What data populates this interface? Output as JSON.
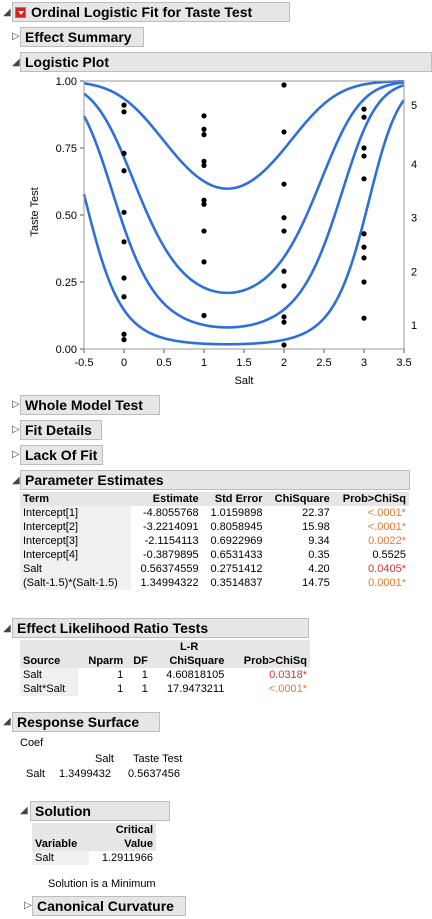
{
  "report": {
    "title": "Ordinal Logistic Fit for Taste Test",
    "effect_summary": "Effect Summary",
    "logistic_plot": "Logistic Plot",
    "whole_model_test": "Whole Model Test",
    "fit_details": "Fit Details",
    "lack_of_fit": "Lack Of Fit",
    "parameter_estimates": "Parameter Estimates",
    "effect_lr_tests": "Effect Likelihood Ratio Tests",
    "response_surface": "Response Surface",
    "solution": "Solution",
    "canonical_curvature": "Canonical Curvature"
  },
  "chart_data": {
    "type": "line",
    "xlabel": "Salt",
    "ylabel": "Taste Test",
    "xlim": [
      -0.5,
      3.5
    ],
    "ylim": [
      0,
      1
    ],
    "x_ticks": [
      "-0.5",
      "0",
      "0.5",
      "1",
      "1.5",
      "2",
      "2.5",
      "3",
      "3.5"
    ],
    "y_ticks": [
      "0.00",
      "0.25",
      "0.50",
      "0.75",
      "1.00"
    ],
    "right_labels": [
      "1",
      "2",
      "3",
      "4",
      "5"
    ],
    "grid": false,
    "line_color": "#2e6fdb",
    "model": {
      "intercepts": [
        -4.8055768,
        -3.2214091,
        -2.1154113,
        -0.3879895
      ],
      "salt": 0.56374559,
      "quad": 1.34994322,
      "center": 1.5
    },
    "points": [
      {
        "x": 0,
        "y": 0.91
      },
      {
        "x": 0,
        "y": 0.885
      },
      {
        "x": 0,
        "y": 0.73
      },
      {
        "x": 0,
        "y": 0.665
      },
      {
        "x": 0,
        "y": 0.51
      },
      {
        "x": 0,
        "y": 0.4
      },
      {
        "x": 0,
        "y": 0.265
      },
      {
        "x": 0,
        "y": 0.195
      },
      {
        "x": 0,
        "y": 0.055
      },
      {
        "x": 0,
        "y": 0.035
      },
      {
        "x": 1,
        "y": 0.87
      },
      {
        "x": 1,
        "y": 0.82
      },
      {
        "x": 1,
        "y": 0.8
      },
      {
        "x": 1,
        "y": 0.7
      },
      {
        "x": 1,
        "y": 0.685
      },
      {
        "x": 1,
        "y": 0.555
      },
      {
        "x": 1,
        "y": 0.54
      },
      {
        "x": 1,
        "y": 0.44
      },
      {
        "x": 1,
        "y": 0.325
      },
      {
        "x": 1,
        "y": 0.125
      },
      {
        "x": 2,
        "y": 0.985
      },
      {
        "x": 2,
        "y": 0.81
      },
      {
        "x": 2,
        "y": 0.615
      },
      {
        "x": 2,
        "y": 0.49
      },
      {
        "x": 2,
        "y": 0.44
      },
      {
        "x": 2,
        "y": 0.29
      },
      {
        "x": 2,
        "y": 0.235
      },
      {
        "x": 2,
        "y": 0.12
      },
      {
        "x": 2,
        "y": 0.1
      },
      {
        "x": 2,
        "y": 0.015
      },
      {
        "x": 3,
        "y": 0.895
      },
      {
        "x": 3,
        "y": 0.865
      },
      {
        "x": 3,
        "y": 0.75
      },
      {
        "x": 3,
        "y": 0.72
      },
      {
        "x": 3,
        "y": 0.635
      },
      {
        "x": 3,
        "y": 0.43
      },
      {
        "x": 3,
        "y": 0.38
      },
      {
        "x": 3,
        "y": 0.34
      },
      {
        "x": 3,
        "y": 0.25
      },
      {
        "x": 3,
        "y": 0.115
      }
    ]
  },
  "param_estimates": {
    "headers": [
      "Term",
      "Estimate",
      "Std Error",
      "ChiSquare",
      "Prob>ChiSq"
    ],
    "rows": [
      {
        "term": "Intercept[1]",
        "estimate": "-4.8055768",
        "stderr": "1.0159898",
        "chisq": "22.37",
        "prob": "<.0001*"
      },
      {
        "term": "Intercept[2]",
        "estimate": "-3.2214091",
        "stderr": "0.8058945",
        "chisq": "15.98",
        "prob": "<.0001*"
      },
      {
        "term": "Intercept[3]",
        "estimate": "-2.1154113",
        "stderr": "0.6922969",
        "chisq": "9.34",
        "prob": "0.0022*"
      },
      {
        "term": "Intercept[4]",
        "estimate": "-0.3879895",
        "stderr": "0.6531433",
        "chisq": "0.35",
        "prob": "0.5525"
      },
      {
        "term": "Salt",
        "estimate": "0.56374559",
        "stderr": "0.2751412",
        "chisq": "4.20",
        "prob": "0.0405*"
      },
      {
        "term": "(Salt-1.5)*(Salt-1.5)",
        "estimate": "1.34994322",
        "stderr": "0.3514837",
        "chisq": "14.75",
        "prob": "0.0001*"
      }
    ]
  },
  "lr_tests": {
    "headers": [
      "Source",
      "Nparm",
      "DF",
      "L-R",
      "ChiSquare",
      "Prob>ChiSq"
    ],
    "rows": [
      {
        "source": "Salt",
        "nparm": "1",
        "df": "1",
        "chisq": "4.60818105",
        "prob": "0.0318*"
      },
      {
        "source": "Salt*Salt",
        "nparm": "1",
        "df": "1",
        "chisq": "17.9473211",
        "prob": "<.0001*"
      }
    ]
  },
  "response_surface": {
    "coef_label": "Coef",
    "col1": "Salt",
    "col2": "Taste Test",
    "row_label": "Salt",
    "v1": "1.3499432",
    "v2": "0.5637456"
  },
  "solution_table": {
    "variable_header": "Variable",
    "critical_header_1": "Critical",
    "critical_header_2": "Value",
    "variable": "Salt",
    "value": "1.2911966",
    "note": "Solution is a  Minimum"
  },
  "colors": {
    "sig_orange": "#e37a32",
    "sig_red": "#d8322f",
    "header_bg": "#e6e6e6",
    "red_button": "#d81e1e"
  }
}
